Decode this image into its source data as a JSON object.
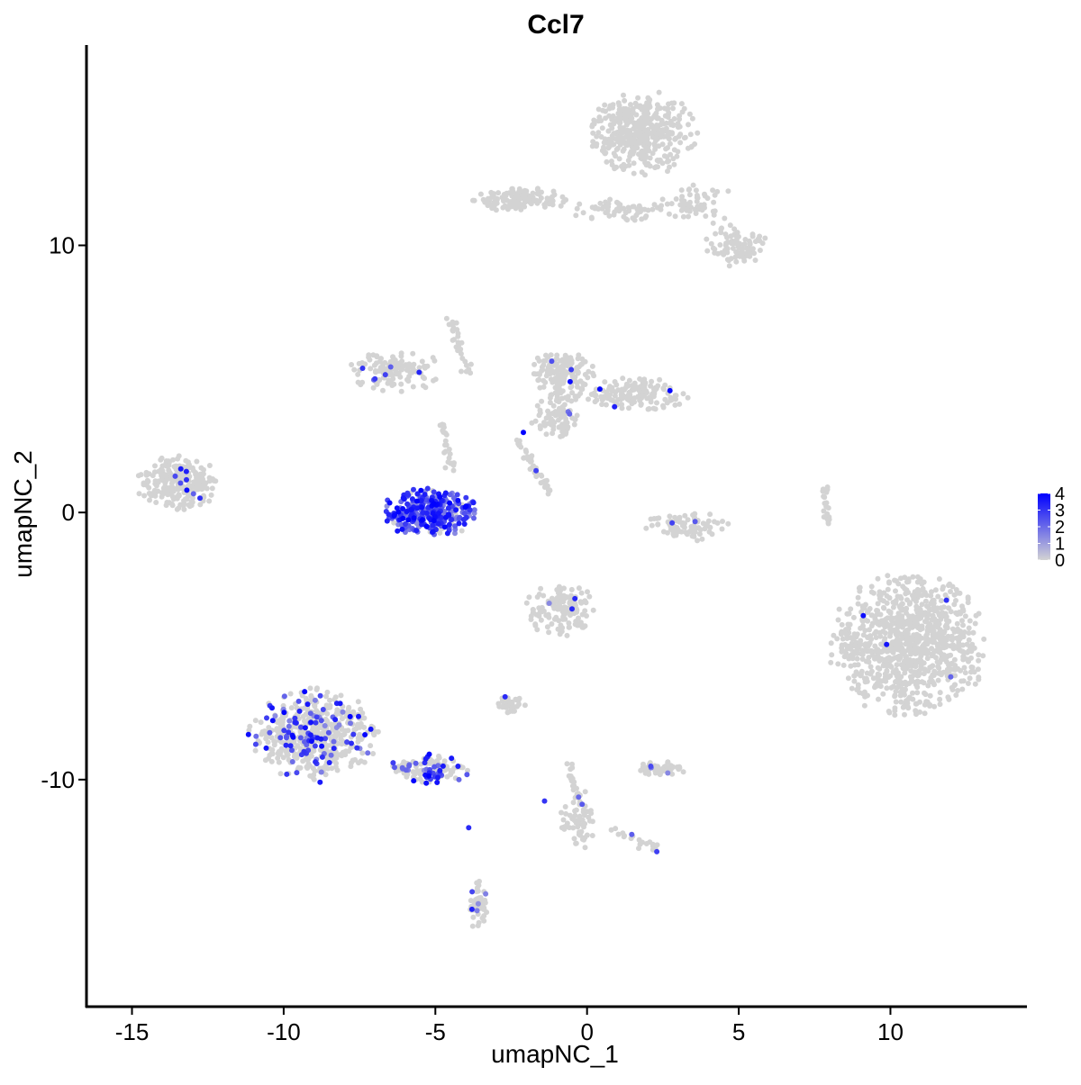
{
  "chart_data": {
    "type": "scatter",
    "title": "Ccl7",
    "xlabel": "umapNC_1",
    "ylabel": "umapNC_2",
    "xlim": [
      -16.5,
      14.5
    ],
    "ylim": [
      -18.5,
      17.5
    ],
    "x_ticks": [
      -15,
      -10,
      -5,
      0,
      5,
      10
    ],
    "x_tick_labels": [
      "-15",
      "-10",
      "-5",
      "0",
      "5",
      "10"
    ],
    "y_ticks": [
      -10,
      0,
      10
    ],
    "y_tick_labels": [
      "-10",
      "0",
      "10"
    ],
    "grid": false,
    "colors": {
      "low": "#d3d3d3",
      "high": "#0000ff",
      "point_default": "#d3d3d3",
      "axis": "#000000"
    },
    "legend": {
      "type": "colorbar",
      "position": "right",
      "range": [
        0,
        4
      ],
      "ticks": [
        0,
        1,
        2,
        3,
        4
      ],
      "tick_labels": [
        "0",
        "1",
        "2",
        "3",
        "4"
      ]
    },
    "clusters": [
      {
        "name": "top-right-upper",
        "cx": 1.8,
        "cy": 14.2,
        "rx": 1.6,
        "ry": 1.4,
        "n": 420,
        "expr": 0
      },
      {
        "name": "top-right-arm-left",
        "cx": -2.2,
        "cy": 11.7,
        "rx": 1.4,
        "ry": 0.4,
        "n": 120,
        "expr": 0
      },
      {
        "name": "top-right-arm-mid",
        "cx": 1.0,
        "cy": 11.3,
        "rx": 1.5,
        "ry": 0.4,
        "n": 60,
        "expr": 0
      },
      {
        "name": "top-right-arm-right",
        "cx": 4.8,
        "cy": 10.0,
        "rx": 1.0,
        "ry": 0.7,
        "n": 90,
        "expr": 0
      },
      {
        "name": "top-right-trail",
        "cx": 3.5,
        "cy": 11.6,
        "rx": 1.2,
        "ry": 0.8,
        "n": 60,
        "expr": 0
      },
      {
        "name": "upper-left-band",
        "cx": -6.3,
        "cy": 5.3,
        "rx": 1.4,
        "ry": 0.7,
        "n": 120,
        "expr": 0.02
      },
      {
        "name": "upper-center",
        "cx": -0.8,
        "cy": 5.2,
        "rx": 0.9,
        "ry": 0.9,
        "n": 160,
        "expr": 0.02
      },
      {
        "name": "upper-center-right",
        "cx": 1.5,
        "cy": 4.4,
        "rx": 1.7,
        "ry": 0.6,
        "n": 160,
        "expr": 0.02
      },
      {
        "name": "upper-center-tail",
        "cx": -1.0,
        "cy": 3.5,
        "rx": 0.8,
        "ry": 0.9,
        "n": 80,
        "expr": 0.02
      },
      {
        "name": "left-island",
        "cx": -13.5,
        "cy": 1.1,
        "rx": 1.2,
        "ry": 0.9,
        "n": 260,
        "expr": 0.02
      },
      {
        "name": "ccl7-high",
        "cx": -5.2,
        "cy": 0.0,
        "rx": 1.4,
        "ry": 0.8,
        "n": 330,
        "expr": 0.85
      },
      {
        "name": "center-right-small",
        "cx": 3.3,
        "cy": -0.5,
        "rx": 1.2,
        "ry": 0.5,
        "n": 90,
        "expr": 0.03
      },
      {
        "name": "right-large",
        "cx": 10.6,
        "cy": -5.0,
        "rx": 2.3,
        "ry": 2.4,
        "n": 950,
        "expr": 0.01
      },
      {
        "name": "center-lower",
        "cx": -0.9,
        "cy": -3.6,
        "rx": 1.0,
        "ry": 0.9,
        "n": 140,
        "expr": 0.02
      },
      {
        "name": "lower-left",
        "cx": -9.0,
        "cy": -8.3,
        "rx": 1.9,
        "ry": 1.5,
        "n": 560,
        "expr": 0.16
      },
      {
        "name": "lower-left-trail",
        "cx": -5.2,
        "cy": -9.6,
        "rx": 1.3,
        "ry": 0.5,
        "n": 120,
        "expr": 0.35
      },
      {
        "name": "lower-mid-small",
        "cx": -2.5,
        "cy": -7.2,
        "rx": 0.4,
        "ry": 0.3,
        "n": 35,
        "expr": 0.05
      },
      {
        "name": "lower-center-right",
        "cx": 2.4,
        "cy": -9.6,
        "rx": 0.8,
        "ry": 0.25,
        "n": 50,
        "expr": 0.08
      },
      {
        "name": "lower-center-strand",
        "cx": -0.3,
        "cy": -11.5,
        "rx": 0.5,
        "ry": 1.1,
        "n": 60,
        "expr": 0.02
      },
      {
        "name": "bottom-strand",
        "cx": -3.6,
        "cy": -14.7,
        "rx": 0.3,
        "ry": 0.8,
        "n": 55,
        "expr": 0.03
      }
    ],
    "strands": [
      {
        "name": "strand-top-tail",
        "from": [
          -4.6,
          7.4
        ],
        "to": [
          -3.9,
          5.2
        ],
        "n": 30,
        "expr": 0
      },
      {
        "name": "strand-diagonal",
        "from": [
          -2.3,
          2.8
        ],
        "to": [
          -1.2,
          0.7
        ],
        "n": 40,
        "expr": 0.02
      },
      {
        "name": "strand-right-line",
        "from": [
          7.8,
          0.9
        ],
        "to": [
          7.9,
          -0.3
        ],
        "n": 20,
        "expr": 0
      },
      {
        "name": "strand-center-down",
        "from": [
          -0.6,
          -9.3
        ],
        "to": [
          -0.3,
          -10.9
        ],
        "n": 20,
        "expr": 0.02
      },
      {
        "name": "strand-down-right",
        "from": [
          0.8,
          -11.9
        ],
        "to": [
          2.4,
          -12.6
        ],
        "n": 20,
        "expr": 0.03
      },
      {
        "name": "strand-upper-left-tail",
        "from": [
          -4.8,
          3.6
        ],
        "to": [
          -4.5,
          1.6
        ],
        "n": 25,
        "expr": 0.02
      }
    ],
    "highlights": [
      {
        "x": -13.4,
        "y": 1.1,
        "expr": 2.5
      },
      {
        "x": -7.4,
        "y": 5.4,
        "expr": 3.0
      },
      {
        "x": -2.1,
        "y": 3.0,
        "expr": 4.0
      },
      {
        "x": -2.7,
        "y": -6.9,
        "expr": 3.2
      },
      {
        "x": -1.4,
        "y": -10.8,
        "expr": 3.0
      },
      {
        "x": -3.9,
        "y": -11.8,
        "expr": 3.2
      },
      {
        "x": -9.9,
        "y": -9.8,
        "expr": 3.0
      },
      {
        "x": -8.8,
        "y": -10.1,
        "expr": 3.5
      },
      {
        "x": 2.3,
        "y": -12.7,
        "expr": 2.8
      },
      {
        "x": 2.1,
        "y": -9.5,
        "expr": 2.6
      }
    ]
  }
}
